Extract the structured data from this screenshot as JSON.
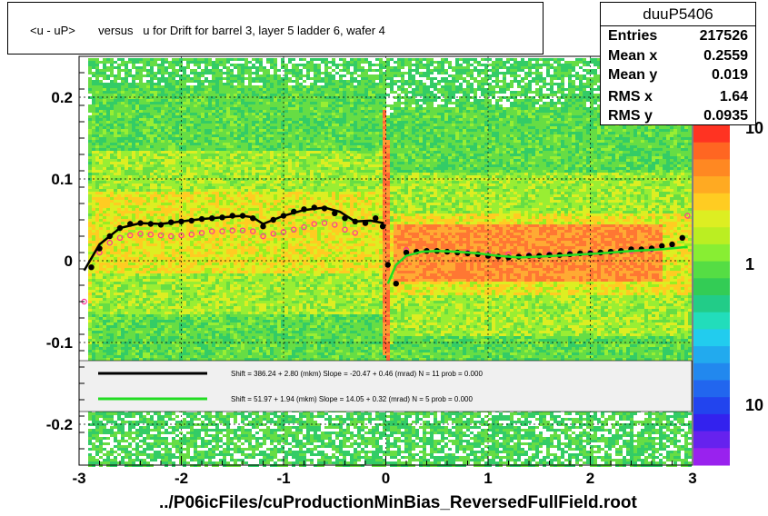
{
  "title": "<u - uP>       versus   u for Drift for barrel 3, layer 5 ladder 6, wafer 4",
  "stats": {
    "name": "duuP5406",
    "rows": [
      {
        "label": "Entries",
        "value": "217526"
      },
      {
        "label": "Mean x",
        "value": "0.2559"
      },
      {
        "label": "Mean y",
        "value": "0.019"
      },
      {
        "label": "RMS x",
        "value": "1.64"
      },
      {
        "label": "RMS y",
        "value": "0.0935"
      }
    ]
  },
  "footer": "../P06icFiles/cuProductionMinBias_ReversedFullField.root",
  "legend": {
    "entries": [
      {
        "color": "#000000",
        "text": "Shift =    386.24 + 2.80 (mkm) Slope =    -20.47 + 0.46 (mrad)  N = 11 prob = 0.000"
      },
      {
        "color": "#22dd22",
        "text": "Shift =    51.97 + 1.94 (mkm) Slope =    14.05 + 0.32 (mrad)  N = 5 prob = 0.000"
      }
    ]
  },
  "chart_data": {
    "type": "heatmap",
    "xlim": [
      -3,
      3
    ],
    "ylim": [
      -0.25,
      0.25
    ],
    "x_ticks": [
      "-3",
      "-2",
      "-1",
      "0",
      "1",
      "2",
      "3"
    ],
    "y_ticks": [
      "-0.2",
      "-0.1",
      "0",
      "0.1",
      "0.2"
    ],
    "colorbar_ticks": [
      "10",
      "1",
      "10"
    ],
    "grid": true,
    "profile_black": {
      "x": [
        -2.88,
        -2.8,
        -2.7,
        -2.6,
        -2.5,
        -2.4,
        -2.3,
        -2.2,
        -2.1,
        -2.0,
        -1.9,
        -1.8,
        -1.7,
        -1.6,
        -1.5,
        -1.4,
        -1.3,
        -1.2,
        -1.1,
        -1.0,
        -0.9,
        -0.8,
        -0.7,
        -0.6,
        -0.5,
        -0.4,
        -0.3,
        -0.2,
        -0.1,
        -0.03,
        0.02,
        0.1,
        0.2,
        0.3,
        0.4,
        0.5,
        0.6,
        0.7,
        0.8,
        0.9,
        1.0,
        1.1,
        1.2,
        1.3,
        1.4,
        1.5,
        1.6,
        1.7,
        1.8,
        1.9,
        2.0,
        2.1,
        2.2,
        2.3,
        2.4,
        2.5,
        2.6,
        2.7,
        2.8,
        2.9
      ],
      "y": [
        -0.008,
        0.015,
        0.03,
        0.04,
        0.045,
        0.046,
        0.045,
        0.044,
        0.047,
        0.048,
        0.049,
        0.051,
        0.052,
        0.053,
        0.055,
        0.055,
        0.052,
        0.042,
        0.05,
        0.055,
        0.06,
        0.063,
        0.065,
        0.064,
        0.058,
        0.052,
        0.048,
        0.046,
        0.052,
        0.042,
        -0.005,
        -0.028,
        0.01,
        0.011,
        0.012,
        0.012,
        0.011,
        0.01,
        0.009,
        0.008,
        0.006,
        0.005,
        0.004,
        0.005,
        0.006,
        0.006,
        0.007,
        0.007,
        0.008,
        0.009,
        0.009,
        0.01,
        0.011,
        0.012,
        0.014,
        0.014,
        0.015,
        0.018,
        0.02,
        0.028
      ]
    },
    "profile_pink": {
      "x": [
        -2.95,
        -2.8,
        -2.7,
        -2.6,
        -2.5,
        -2.4,
        -2.3,
        -2.2,
        -2.1,
        -2.0,
        -1.9,
        -1.8,
        -1.7,
        -1.6,
        -1.5,
        -1.4,
        -1.3,
        -1.2,
        -1.1,
        -1.0,
        -0.9,
        -0.8,
        -0.7,
        -0.6,
        -0.5,
        -0.4,
        -0.3,
        0.2,
        0.4,
        0.6,
        0.8,
        1.0,
        1.2,
        1.4,
        1.6,
        1.8,
        2.0,
        2.2,
        2.4,
        2.6,
        2.8,
        2.95
      ],
      "y": [
        -0.05,
        0.01,
        0.022,
        0.028,
        0.031,
        0.033,
        0.032,
        0.031,
        0.03,
        0.031,
        0.032,
        0.034,
        0.036,
        0.036,
        0.037,
        0.037,
        0.036,
        0.03,
        0.033,
        0.035,
        0.038,
        0.041,
        0.045,
        0.046,
        0.044,
        0.038,
        0.034,
        0.013,
        0.012,
        0.011,
        0.01,
        0.009,
        0.008,
        0.007,
        0.008,
        0.009,
        0.01,
        0.011,
        0.012,
        0.014,
        0.018,
        0.055
      ]
    },
    "fit_black": {
      "x": [
        -2.95,
        -2.8,
        -2.6,
        -2.4,
        -2.2,
        -2.0,
        -1.8,
        -1.6,
        -1.4,
        -1.3,
        -1.2,
        -1.1,
        -1.0,
        -0.8,
        -0.6,
        -0.45,
        -0.3,
        -0.15,
        -0.02
      ],
      "y": [
        -0.012,
        0.02,
        0.04,
        0.046,
        0.045,
        0.048,
        0.051,
        0.053,
        0.055,
        0.053,
        0.045,
        0.05,
        0.055,
        0.062,
        0.065,
        0.06,
        0.048,
        0.049,
        0.046
      ]
    },
    "fit_green": {
      "x": [
        0.02,
        0.1,
        0.2,
        0.35,
        0.5,
        0.7,
        0.9,
        1.1,
        1.3,
        1.5,
        1.8,
        2.1,
        2.4,
        2.7,
        2.95
      ],
      "y": [
        -0.028,
        -0.005,
        0.006,
        0.011,
        0.012,
        0.011,
        0.009,
        0.006,
        0.004,
        0.005,
        0.007,
        0.009,
        0.012,
        0.014,
        0.017
      ]
    }
  }
}
